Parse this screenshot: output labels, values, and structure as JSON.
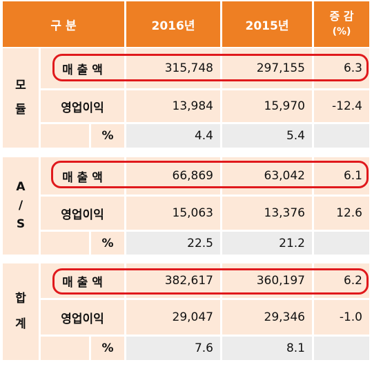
{
  "header": {
    "category": "구     분",
    "y2016": "2016년",
    "y2015": "2015년",
    "change_top": "증 감",
    "change_bottom": "(%)"
  },
  "sections": [
    {
      "name_lines": [
        "모",
        "듈"
      ],
      "rows": [
        {
          "label": "매 출 액",
          "v2016": "315,748",
          "v2015": "297,155",
          "change": "6.3"
        },
        {
          "label": "영업이익",
          "v2016": "13,984",
          "v2015": "15,970",
          "change": "-12.4"
        },
        {
          "label": "%",
          "v2016": "4.4",
          "v2015": "5.4",
          "change": ""
        }
      ]
    },
    {
      "name_lines": [
        "A",
        "/",
        "S"
      ],
      "rows": [
        {
          "label": "매 출 액",
          "v2016": "66,869",
          "v2015": "63,042",
          "change": "6.1"
        },
        {
          "label": "영업이익",
          "v2016": "15,063",
          "v2015": "13,376",
          "change": "12.6"
        },
        {
          "label": "%",
          "v2016": "22.5",
          "v2015": "21.2",
          "change": ""
        }
      ]
    },
    {
      "name_lines": [
        "합",
        "계"
      ],
      "rows": [
        {
          "label": "매 출 액",
          "v2016": "382,617",
          "v2015": "360,197",
          "change": "6.2"
        },
        {
          "label": "영업이익",
          "v2016": "29,047",
          "v2015": "29,346",
          "change": "-1.0"
        },
        {
          "label": "%",
          "v2016": "7.6",
          "v2015": "8.1",
          "change": ""
        }
      ]
    }
  ]
}
